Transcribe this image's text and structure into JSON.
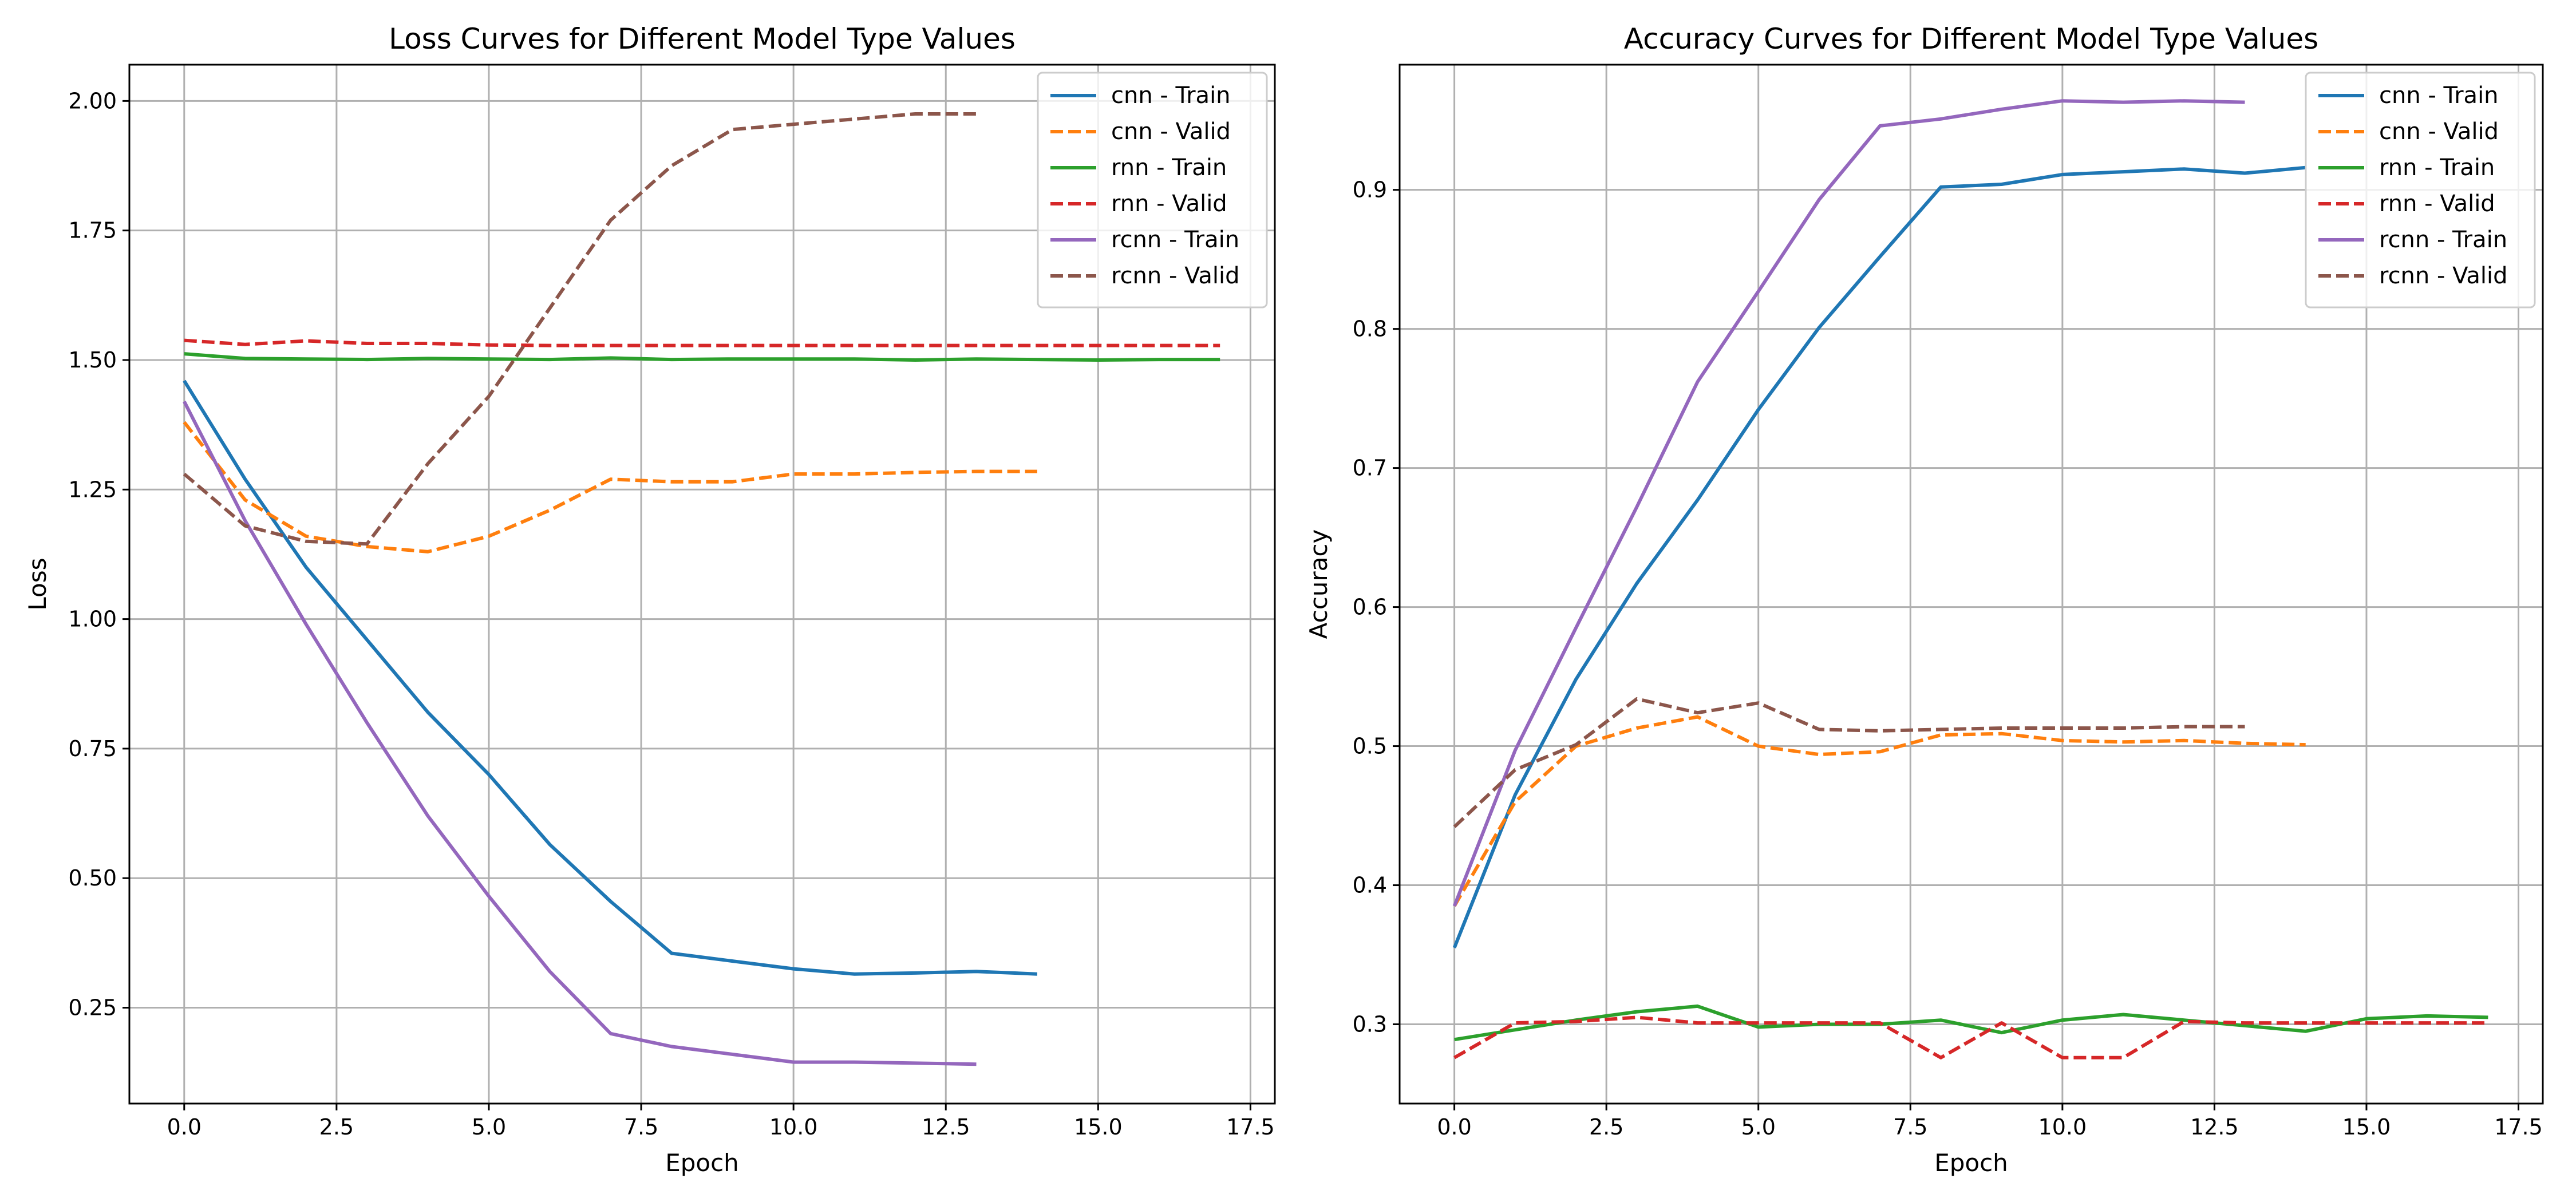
{
  "chart_data": [
    {
      "type": "line",
      "title": "Loss Curves for Different Model Type Values",
      "xlabel": "Epoch",
      "ylabel": "Loss",
      "xlim": [
        -0.9,
        17.9
      ],
      "ylim": [
        0.065,
        2.07
      ],
      "xticks": [
        0.0,
        2.5,
        5.0,
        7.5,
        10.0,
        12.5,
        15.0,
        17.5
      ],
      "xtick_labels": [
        "0.0",
        "2.5",
        "5.0",
        "7.5",
        "10.0",
        "12.5",
        "15.0",
        "17.5"
      ],
      "yticks": [
        0.25,
        0.5,
        0.75,
        1.0,
        1.25,
        1.5,
        1.75,
        2.0
      ],
      "ytick_labels": [
        "0.25",
        "0.50",
        "0.75",
        "1.00",
        "1.25",
        "1.50",
        "1.75",
        "2.00"
      ],
      "grid": true,
      "legend_position": "top-right",
      "series": [
        {
          "name": "cnn - Train",
          "color": "#1f77b4",
          "dashed": false,
          "x": [
            0,
            1,
            2,
            3,
            4,
            5,
            6,
            7,
            8,
            9,
            10,
            11,
            12,
            13,
            14
          ],
          "y": [
            1.46,
            1.27,
            1.1,
            0.96,
            0.82,
            0.7,
            0.565,
            0.455,
            0.355,
            0.34,
            0.325,
            0.315,
            0.317,
            0.32,
            0.315
          ]
        },
        {
          "name": "cnn - Valid",
          "color": "#ff7f0e",
          "dashed": true,
          "x": [
            0,
            1,
            2,
            3,
            4,
            5,
            6,
            7,
            8,
            9,
            10,
            11,
            12,
            13,
            14
          ],
          "y": [
            1.38,
            1.23,
            1.16,
            1.14,
            1.13,
            1.16,
            1.21,
            1.27,
            1.265,
            1.265,
            1.28,
            1.28,
            1.283,
            1.285,
            1.285
          ]
        },
        {
          "name": "rnn - Train",
          "color": "#2ca02c",
          "dashed": false,
          "x": [
            0,
            1,
            2,
            3,
            4,
            5,
            6,
            7,
            8,
            9,
            10,
            11,
            12,
            13,
            14,
            15,
            16,
            17
          ],
          "y": [
            1.512,
            1.503,
            1.502,
            1.501,
            1.503,
            1.502,
            1.501,
            1.504,
            1.501,
            1.502,
            1.502,
            1.502,
            1.5,
            1.502,
            1.501,
            1.5,
            1.501,
            1.501
          ]
        },
        {
          "name": "rnn - Valid",
          "color": "#d62728",
          "dashed": true,
          "x": [
            0,
            1,
            2,
            3,
            4,
            5,
            6,
            7,
            8,
            9,
            10,
            11,
            12,
            13,
            14,
            15,
            16,
            17
          ],
          "y": [
            1.538,
            1.53,
            1.537,
            1.532,
            1.532,
            1.529,
            1.528,
            1.528,
            1.528,
            1.528,
            1.528,
            1.528,
            1.528,
            1.528,
            1.528,
            1.528,
            1.528,
            1.528
          ]
        },
        {
          "name": "rcnn - Train",
          "color": "#9467bd",
          "dashed": false,
          "x": [
            0,
            1,
            2,
            3,
            4,
            5,
            6,
            7,
            8,
            9,
            10,
            11,
            12,
            13
          ],
          "y": [
            1.42,
            1.19,
            0.99,
            0.8,
            0.62,
            0.465,
            0.32,
            0.2,
            0.175,
            0.16,
            0.145,
            0.145,
            0.143,
            0.141
          ]
        },
        {
          "name": "rcnn - Valid",
          "color": "#8c564b",
          "dashed": true,
          "x": [
            0,
            1,
            2,
            3,
            4,
            5,
            6,
            7,
            8,
            9,
            10,
            11,
            12,
            13
          ],
          "y": [
            1.28,
            1.18,
            1.15,
            1.145,
            1.3,
            1.43,
            1.6,
            1.77,
            1.875,
            1.945,
            1.955,
            1.965,
            1.975,
            1.975
          ]
        }
      ]
    },
    {
      "type": "line",
      "title": "Accuracy Curves for Different Model Type Values",
      "xlabel": "Epoch",
      "ylabel": "Accuracy",
      "xlim": [
        -0.9,
        17.9
      ],
      "ylim": [
        0.243,
        0.99
      ],
      "xticks": [
        0.0,
        2.5,
        5.0,
        7.5,
        10.0,
        12.5,
        15.0,
        17.5
      ],
      "xtick_labels": [
        "0.0",
        "2.5",
        "5.0",
        "7.5",
        "10.0",
        "12.5",
        "15.0",
        "17.5"
      ],
      "yticks": [
        0.3,
        0.4,
        0.5,
        0.6,
        0.7,
        0.8,
        0.9
      ],
      "ytick_labels": [
        "0.3",
        "0.4",
        "0.5",
        "0.6",
        "0.7",
        "0.8",
        "0.9"
      ],
      "grid": true,
      "legend_position": "top-right",
      "series": [
        {
          "name": "cnn - Train",
          "color": "#1f77b4",
          "dashed": false,
          "x": [
            0,
            1,
            2,
            3,
            4,
            5,
            6,
            7,
            8,
            9,
            10,
            11,
            12,
            13,
            14
          ],
          "y": [
            0.355,
            0.465,
            0.548,
            0.617,
            0.677,
            0.742,
            0.801,
            0.852,
            0.902,
            0.904,
            0.911,
            0.913,
            0.915,
            0.912,
            0.916
          ]
        },
        {
          "name": "cnn - Valid",
          "color": "#ff7f0e",
          "dashed": true,
          "x": [
            0,
            1,
            2,
            3,
            4,
            5,
            6,
            7,
            8,
            9,
            10,
            11,
            12,
            13,
            14
          ],
          "y": [
            0.385,
            0.46,
            0.5,
            0.513,
            0.521,
            0.5,
            0.494,
            0.496,
            0.508,
            0.509,
            0.504,
            0.503,
            0.504,
            0.502,
            0.501
          ]
        },
        {
          "name": "rnn - Train",
          "color": "#2ca02c",
          "dashed": false,
          "x": [
            0,
            1,
            2,
            3,
            4,
            5,
            6,
            7,
            8,
            9,
            10,
            11,
            12,
            13,
            14,
            15,
            16,
            17
          ],
          "y": [
            0.289,
            0.296,
            0.303,
            0.309,
            0.313,
            0.298,
            0.3,
            0.3,
            0.303,
            0.294,
            0.303,
            0.307,
            0.303,
            0.299,
            0.295,
            0.304,
            0.306,
            0.305
          ]
        },
        {
          "name": "rnn - Valid",
          "color": "#d62728",
          "dashed": true,
          "x": [
            0,
            1,
            2,
            3,
            4,
            5,
            6,
            7,
            8,
            9,
            10,
            11,
            12,
            13,
            14,
            15,
            16,
            17
          ],
          "y": [
            0.276,
            0.301,
            0.302,
            0.305,
            0.301,
            0.301,
            0.301,
            0.301,
            0.276,
            0.301,
            0.276,
            0.276,
            0.302,
            0.301,
            0.301,
            0.301,
            0.301,
            0.301
          ]
        },
        {
          "name": "rcnn - Train",
          "color": "#9467bd",
          "dashed": false,
          "x": [
            0,
            1,
            2,
            3,
            4,
            5,
            6,
            7,
            8,
            9,
            10,
            11,
            12,
            13
          ],
          "y": [
            0.385,
            0.497,
            0.585,
            0.672,
            0.762,
            0.827,
            0.893,
            0.946,
            0.951,
            0.958,
            0.964,
            0.963,
            0.964,
            0.963
          ]
        },
        {
          "name": "rcnn - Valid",
          "color": "#8c564b",
          "dashed": true,
          "x": [
            0,
            1,
            2,
            3,
            4,
            5,
            6,
            7,
            8,
            9,
            10,
            11,
            12,
            13
          ],
          "y": [
            0.442,
            0.483,
            0.501,
            0.534,
            0.524,
            0.531,
            0.512,
            0.511,
            0.512,
            0.513,
            0.513,
            0.513,
            0.514,
            0.514
          ]
        }
      ]
    }
  ]
}
